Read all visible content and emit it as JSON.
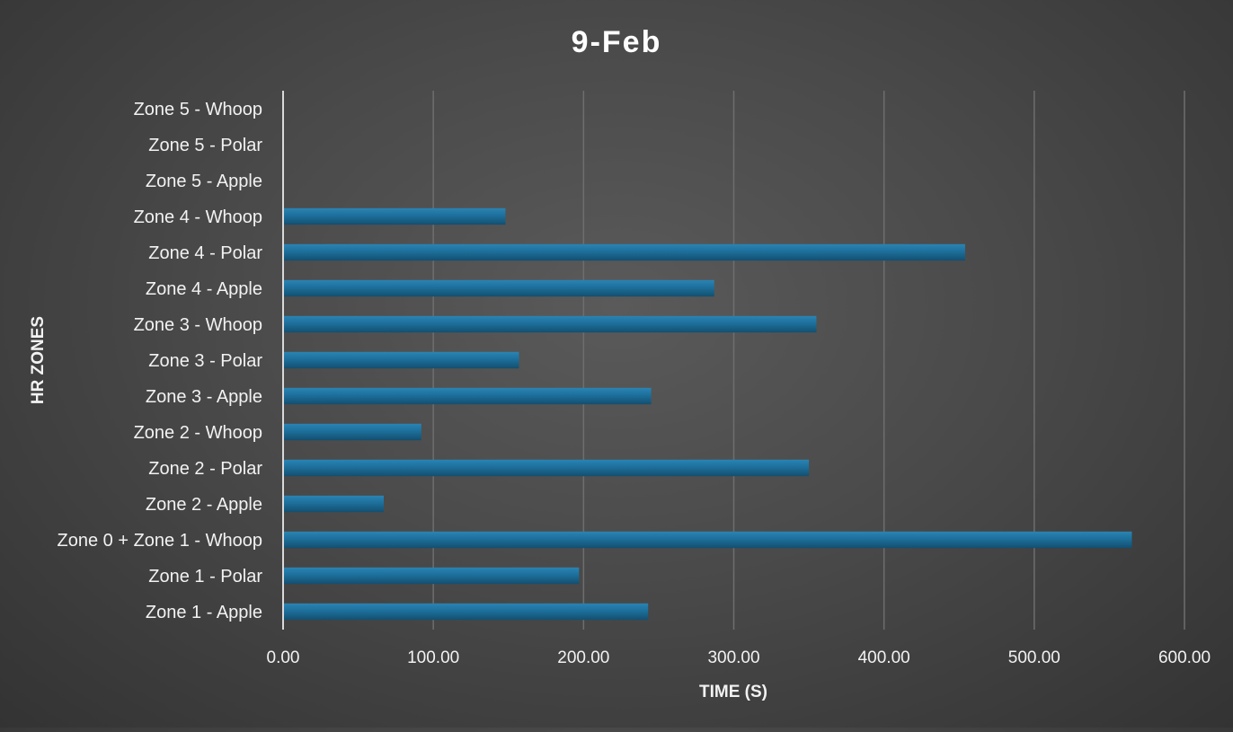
{
  "chart_data": {
    "type": "bar",
    "orientation": "horizontal",
    "title": "9-Feb",
    "xlabel": "TIME (S)",
    "ylabel": "HR ZONES",
    "xlim": [
      0,
      600
    ],
    "xticks": [
      0,
      100,
      200,
      300,
      400,
      500,
      600
    ],
    "xtick_labels": [
      "0.00",
      "100.00",
      "200.00",
      "300.00",
      "400.00",
      "500.00",
      "600.00"
    ],
    "categories": [
      "Zone 1 - Apple",
      "Zone 1 - Polar",
      "Zone 0 + Zone 1 - Whoop",
      "Zone 2 - Apple",
      "Zone 2 - Polar",
      "Zone 2 - Whoop",
      "Zone 3 - Apple",
      "Zone 3 - Polar",
      "Zone 3 - Whoop",
      "Zone 4 - Apple",
      "Zone 4 - Polar",
      "Zone 4 - Whoop",
      "Zone 5 - Apple",
      "Zone 5 - Polar",
      "Zone 5 - Whoop"
    ],
    "values": [
      243,
      197,
      565,
      67,
      350,
      92,
      245,
      157,
      355,
      287,
      454,
      148,
      0,
      0,
      0
    ],
    "grid": "vertical",
    "legend": "none",
    "colors": {
      "bar": "#1b6a94",
      "background": "#4a4a4a",
      "grid": "#6e6e6e",
      "axis": "#d9d9d9",
      "text": "#f2f2f2"
    }
  }
}
